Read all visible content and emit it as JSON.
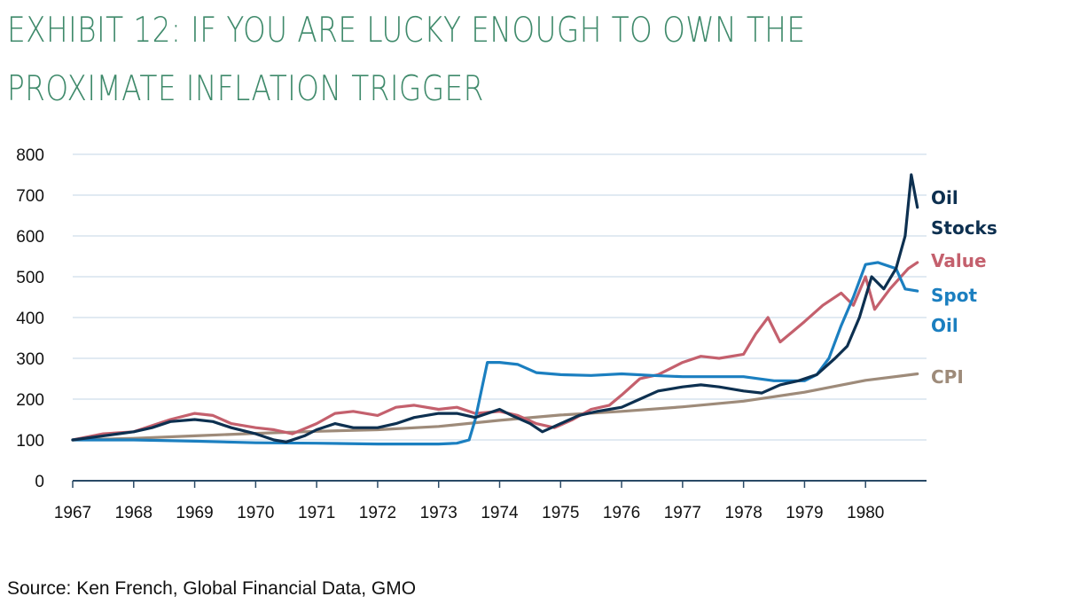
{
  "title": "EXHIBIT 12: IF YOU ARE LUCKY ENOUGH TO OWN THE PROXIMATE INFLATION TRIGGER",
  "source": "Source: Ken French, Global Financial Data, GMO",
  "colors": {
    "oil_stocks": "#0d3050",
    "value": "#c4606d",
    "spot_oil": "#1b7fc0",
    "cpi": "#9e8b7a",
    "grid": "#d7e3ee",
    "axis": "#2a4a66"
  },
  "chart_data": {
    "type": "line",
    "title": "",
    "xlabel": "",
    "ylabel": "",
    "ylim": [
      0,
      800
    ],
    "xlim": [
      1967,
      1981
    ],
    "yticks": [
      "0",
      "100",
      "200",
      "300",
      "400",
      "500",
      "600",
      "700",
      "800"
    ],
    "xticks": [
      "1967",
      "1968",
      "1969",
      "1970",
      "1971",
      "1972",
      "1973",
      "1974",
      "1975",
      "1976",
      "1977",
      "1978",
      "1979",
      "1980"
    ],
    "grid": true,
    "legend": "right",
    "series": [
      {
        "name": "Oil Stocks",
        "label_lines": [
          "Oil",
          "Stocks"
        ],
        "color_key": "oil_stocks",
        "x": [
          1967.0,
          1967.5,
          1968.0,
          1968.3,
          1968.6,
          1969.0,
          1969.3,
          1969.6,
          1970.0,
          1970.3,
          1970.5,
          1970.8,
          1971.0,
          1971.3,
          1971.6,
          1972.0,
          1972.3,
          1972.6,
          1973.0,
          1973.3,
          1973.6,
          1974.0,
          1974.2,
          1974.5,
          1974.7,
          1975.0,
          1975.3,
          1975.6,
          1976.0,
          1976.3,
          1976.6,
          1977.0,
          1977.3,
          1977.6,
          1978.0,
          1978.3,
          1978.6,
          1978.9,
          1979.2,
          1979.5,
          1979.7,
          1979.9,
          1980.1,
          1980.3,
          1980.5,
          1980.65,
          1980.75,
          1980.85
        ],
        "y": [
          100,
          110,
          120,
          130,
          145,
          150,
          145,
          130,
          115,
          100,
          95,
          110,
          125,
          140,
          130,
          130,
          140,
          155,
          165,
          165,
          155,
          175,
          160,
          140,
          120,
          140,
          160,
          170,
          180,
          200,
          220,
          230,
          235,
          230,
          220,
          215,
          235,
          245,
          260,
          300,
          330,
          400,
          500,
          470,
          520,
          600,
          750,
          670
        ]
      },
      {
        "name": "Value",
        "label_lines": [
          "Value"
        ],
        "color_key": "value",
        "x": [
          1967.0,
          1967.5,
          1968.0,
          1968.3,
          1968.6,
          1969.0,
          1969.3,
          1969.6,
          1970.0,
          1970.3,
          1970.6,
          1971.0,
          1971.3,
          1971.6,
          1972.0,
          1972.3,
          1972.6,
          1973.0,
          1973.3,
          1973.6,
          1974.0,
          1974.3,
          1974.6,
          1974.9,
          1975.2,
          1975.5,
          1975.8,
          1976.0,
          1976.3,
          1976.6,
          1977.0,
          1977.3,
          1977.6,
          1978.0,
          1978.2,
          1978.4,
          1978.6,
          1978.8,
          1979.0,
          1979.3,
          1979.6,
          1979.8,
          1980.0,
          1980.15,
          1980.4,
          1980.7,
          1980.85
        ],
        "y": [
          100,
          115,
          120,
          135,
          150,
          165,
          160,
          140,
          130,
          125,
          115,
          140,
          165,
          170,
          160,
          180,
          185,
          175,
          180,
          165,
          170,
          160,
          140,
          130,
          150,
          175,
          185,
          210,
          250,
          260,
          290,
          305,
          300,
          310,
          360,
          400,
          340,
          365,
          390,
          430,
          460,
          430,
          500,
          420,
          470,
          520,
          535
        ]
      },
      {
        "name": "Spot Oil",
        "label_lines": [
          "Spot",
          "Oil"
        ],
        "color_key": "spot_oil",
        "x": [
          1967.0,
          1968.0,
          1969.0,
          1970.0,
          1971.0,
          1972.0,
          1973.0,
          1973.3,
          1973.5,
          1973.6,
          1973.8,
          1974.0,
          1974.3,
          1974.6,
          1975.0,
          1975.5,
          1976.0,
          1976.5,
          1977.0,
          1977.5,
          1978.0,
          1978.5,
          1979.0,
          1979.2,
          1979.4,
          1979.6,
          1979.8,
          1980.0,
          1980.2,
          1980.5,
          1980.65,
          1980.85
        ],
        "y": [
          100,
          100,
          97,
          93,
          92,
          90,
          90,
          92,
          100,
          150,
          290,
          290,
          285,
          265,
          260,
          258,
          262,
          258,
          255,
          255,
          255,
          245,
          245,
          260,
          300,
          380,
          450,
          530,
          535,
          520,
          470,
          465
        ]
      },
      {
        "name": "CPI",
        "label_lines": [
          "CPI"
        ],
        "color_key": "cpi",
        "x": [
          1967,
          1968,
          1969,
          1970,
          1971,
          1972,
          1973,
          1974,
          1975,
          1976,
          1977,
          1978,
          1979,
          1980,
          1980.85
        ],
        "y": [
          100,
          104,
          110,
          116,
          121,
          125,
          133,
          148,
          161,
          170,
          181,
          195,
          217,
          246,
          262
        ]
      }
    ]
  }
}
